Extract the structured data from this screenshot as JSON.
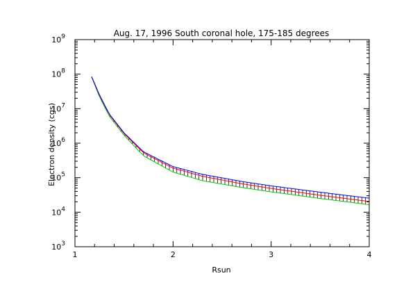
{
  "chart_data": {
    "type": "line",
    "title": "Aug. 17, 1996 South coronal hole, 175-185 degrees",
    "xlabel": "Rsun",
    "ylabel": "Electron density (cgs)",
    "xlim": [
      1,
      4
    ],
    "ylim": [
      1000,
      1000000000
    ],
    "yscale": "log",
    "x_ticks": [
      {
        "value": 1,
        "label": "1"
      },
      {
        "value": 2,
        "label": "2"
      },
      {
        "value": 3,
        "label": "3"
      },
      {
        "value": 4,
        "label": "4"
      }
    ],
    "y_ticks": [
      {
        "value": 1000,
        "base": "10",
        "exp": "3"
      },
      {
        "value": 10000,
        "base": "10",
        "exp": "4"
      },
      {
        "value": 100000,
        "base": "10",
        "exp": "5"
      },
      {
        "value": 1000000,
        "base": "10",
        "exp": "6"
      },
      {
        "value": 10000000,
        "base": "10",
        "exp": "7"
      },
      {
        "value": 100000000,
        "base": "10",
        "exp": "8"
      },
      {
        "value": 1000000000,
        "base": "10",
        "exp": "9"
      }
    ],
    "x": [
      1.17,
      1.25,
      1.35,
      1.5,
      1.7,
      2.0,
      2.3,
      2.7,
      3.0,
      3.5,
      4.0
    ],
    "series": [
      {
        "color": "#0000ff",
        "values": [
          85000000,
          25000000,
          7000000,
          2000000,
          560000,
          210000,
          125000,
          78000,
          58000,
          38000,
          25500
        ]
      },
      {
        "color": "#ff0000",
        "values": [
          84000000,
          24000000,
          6700000,
          1900000,
          520000,
          190000,
          110000,
          67000,
          49000,
          31000,
          20500
        ]
      },
      {
        "color": "#00cc00",
        "values": [
          82000000,
          22000000,
          6000000,
          1700000,
          430000,
          145000,
          82000,
          52000,
          39000,
          25000,
          16500
        ]
      }
    ],
    "error_band": {
      "upper_series": 0,
      "lower_series": 2,
      "color": "#000000"
    },
    "grid": false,
    "legend": "none"
  }
}
